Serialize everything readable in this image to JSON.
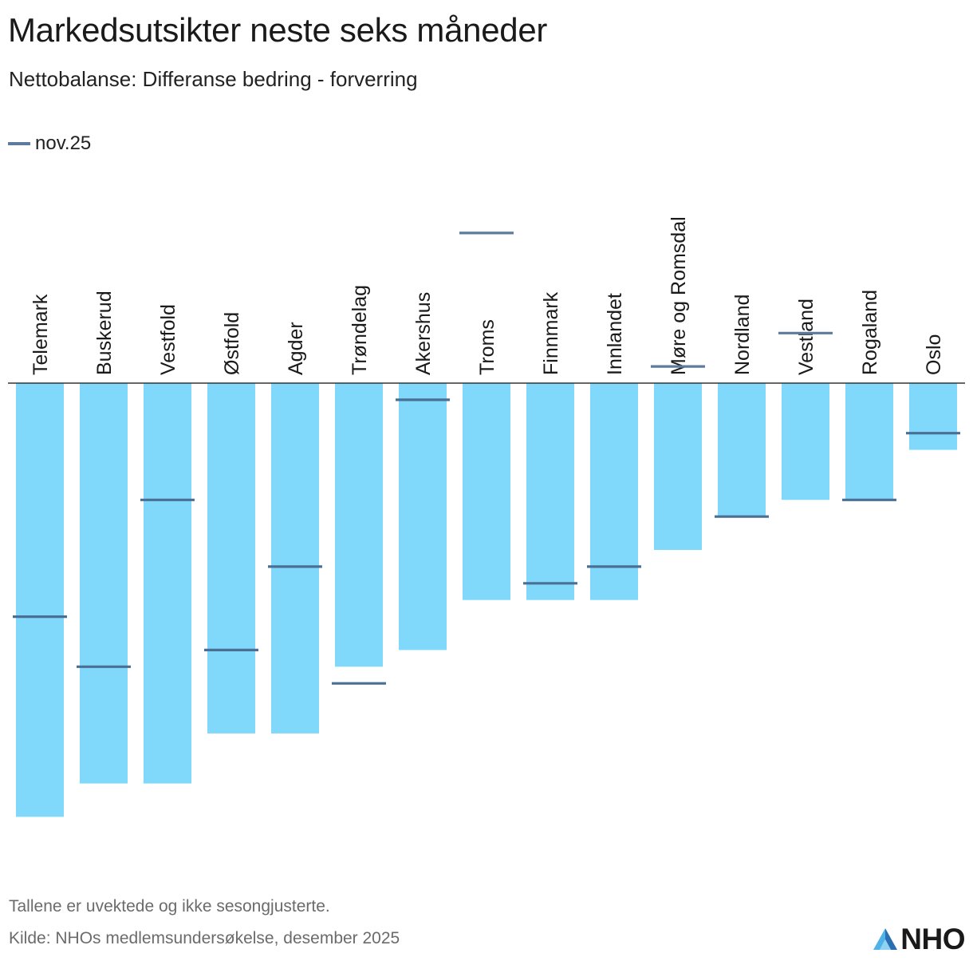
{
  "header": {
    "title": "Markedsutsikter neste seks måneder",
    "subtitle": "Nettobalanse: Differanse bedring - forverring"
  },
  "legend": {
    "label": "nov.25",
    "color": "#5d7b9d"
  },
  "footer": {
    "note": "Tallene er uvektede og ikke sesongjusterte.",
    "source": "Kilde: NHOs medlemsundersøkelse, desember 2025"
  },
  "logo": {
    "text": "NHO",
    "icon": "nho-logo-icon"
  },
  "colors": {
    "bar": "#80d9fa",
    "marker": "#4a6f95",
    "marker_above": "#5d7b9d",
    "axis": "#333333"
  },
  "chart_data": {
    "type": "bar",
    "categories": [
      "Telemark",
      "Buskerud",
      "Vestfold",
      "Østfold",
      "Agder",
      "Trøndelag",
      "Akershus",
      "Troms",
      "Finnmark",
      "Innlandet",
      "Møre og Romsdal",
      "Nordland",
      "Vestland",
      "Rogaland",
      "Oslo"
    ],
    "series": [
      {
        "values": [
          -26,
          -24,
          -24,
          -21,
          -21,
          -17,
          -16,
          -13,
          -13,
          -13,
          -10,
          -8,
          -7,
          -7,
          -4
        ]
      },
      {
        "name": "nov.25",
        "values": [
          -14,
          -17,
          -7,
          -16,
          -11,
          -18,
          -1,
          9,
          -12,
          -11,
          1,
          -8,
          3,
          -7,
          -3
        ]
      }
    ],
    "ylim": [
      -28,
      11
    ]
  }
}
